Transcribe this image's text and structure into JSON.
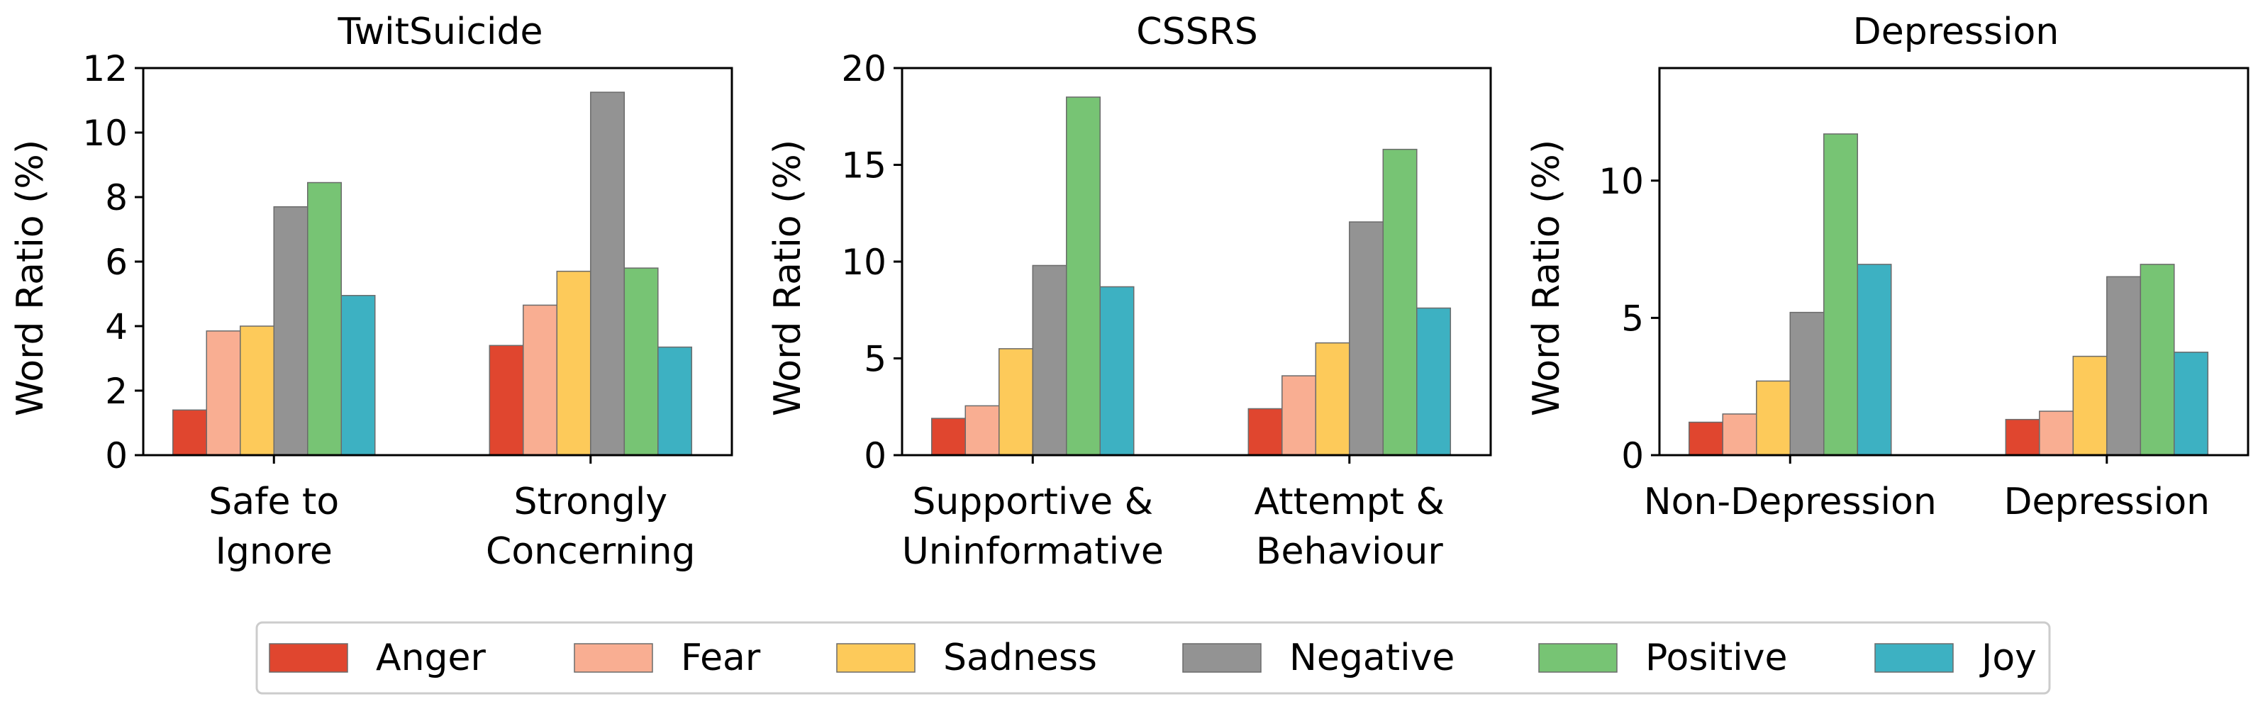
{
  "series_names": [
    "Anger",
    "Fear",
    "Sadness",
    "Negative",
    "Positive",
    "Joy"
  ],
  "series_colors": [
    "#E0462F",
    "#F9AE92",
    "#FDCA5A",
    "#939393",
    "#77C474",
    "#3DB1C2"
  ],
  "legend": {
    "placement": "bottom-center"
  },
  "chart_data": [
    {
      "type": "bar",
      "title": "TwitSuicide",
      "ylabel": "Word Ratio (%)",
      "ylim": [
        0,
        12
      ],
      "yticks": [
        "0",
        "2",
        "4",
        "6",
        "8",
        "10",
        "12"
      ],
      "categories": [
        [
          "Safe to",
          "Ignore"
        ],
        [
          "Strongly",
          "Concerning"
        ]
      ],
      "series": [
        {
          "name": "Anger",
          "values": [
            1.4,
            3.4
          ]
        },
        {
          "name": "Fear",
          "values": [
            3.85,
            4.65
          ]
        },
        {
          "name": "Sadness",
          "values": [
            4.0,
            5.7
          ]
        },
        {
          "name": "Negative",
          "values": [
            7.7,
            11.25
          ]
        },
        {
          "name": "Positive",
          "values": [
            8.45,
            5.8
          ]
        },
        {
          "name": "Joy",
          "values": [
            4.95,
            3.35
          ]
        }
      ]
    },
    {
      "type": "bar",
      "title": "CSSRS",
      "ylabel": "Word Ratio (%)",
      "ylim": [
        0,
        20
      ],
      "yticks": [
        "0",
        "5",
        "10",
        "15",
        "20"
      ],
      "categories": [
        [
          "Supportive &",
          "Uninformative"
        ],
        [
          "Attempt &",
          "Behaviour"
        ]
      ],
      "series": [
        {
          "name": "Anger",
          "values": [
            1.9,
            2.4
          ]
        },
        {
          "name": "Fear",
          "values": [
            2.55,
            4.1
          ]
        },
        {
          "name": "Sadness",
          "values": [
            5.5,
            5.8
          ]
        },
        {
          "name": "Negative",
          "values": [
            9.8,
            12.05
          ]
        },
        {
          "name": "Positive",
          "values": [
            18.5,
            15.8
          ]
        },
        {
          "name": "Joy",
          "values": [
            8.7,
            7.6
          ]
        }
      ]
    },
    {
      "type": "bar",
      "title": "Depression",
      "ylabel": "Word Ratio (%)",
      "ylim": [
        0,
        14.1
      ],
      "yticks": [
        "0",
        "5",
        "10"
      ],
      "categories": [
        [
          "Non-Depression"
        ],
        [
          "Depression"
        ]
      ],
      "series": [
        {
          "name": "Anger",
          "values": [
            1.2,
            1.3
          ]
        },
        {
          "name": "Fear",
          "values": [
            1.5,
            1.6
          ]
        },
        {
          "name": "Sadness",
          "values": [
            2.7,
            3.6
          ]
        },
        {
          "name": "Negative",
          "values": [
            5.2,
            6.5
          ]
        },
        {
          "name": "Positive",
          "values": [
            11.7,
            6.95
          ]
        },
        {
          "name": "Joy",
          "values": [
            6.95,
            3.75
          ]
        }
      ]
    }
  ]
}
